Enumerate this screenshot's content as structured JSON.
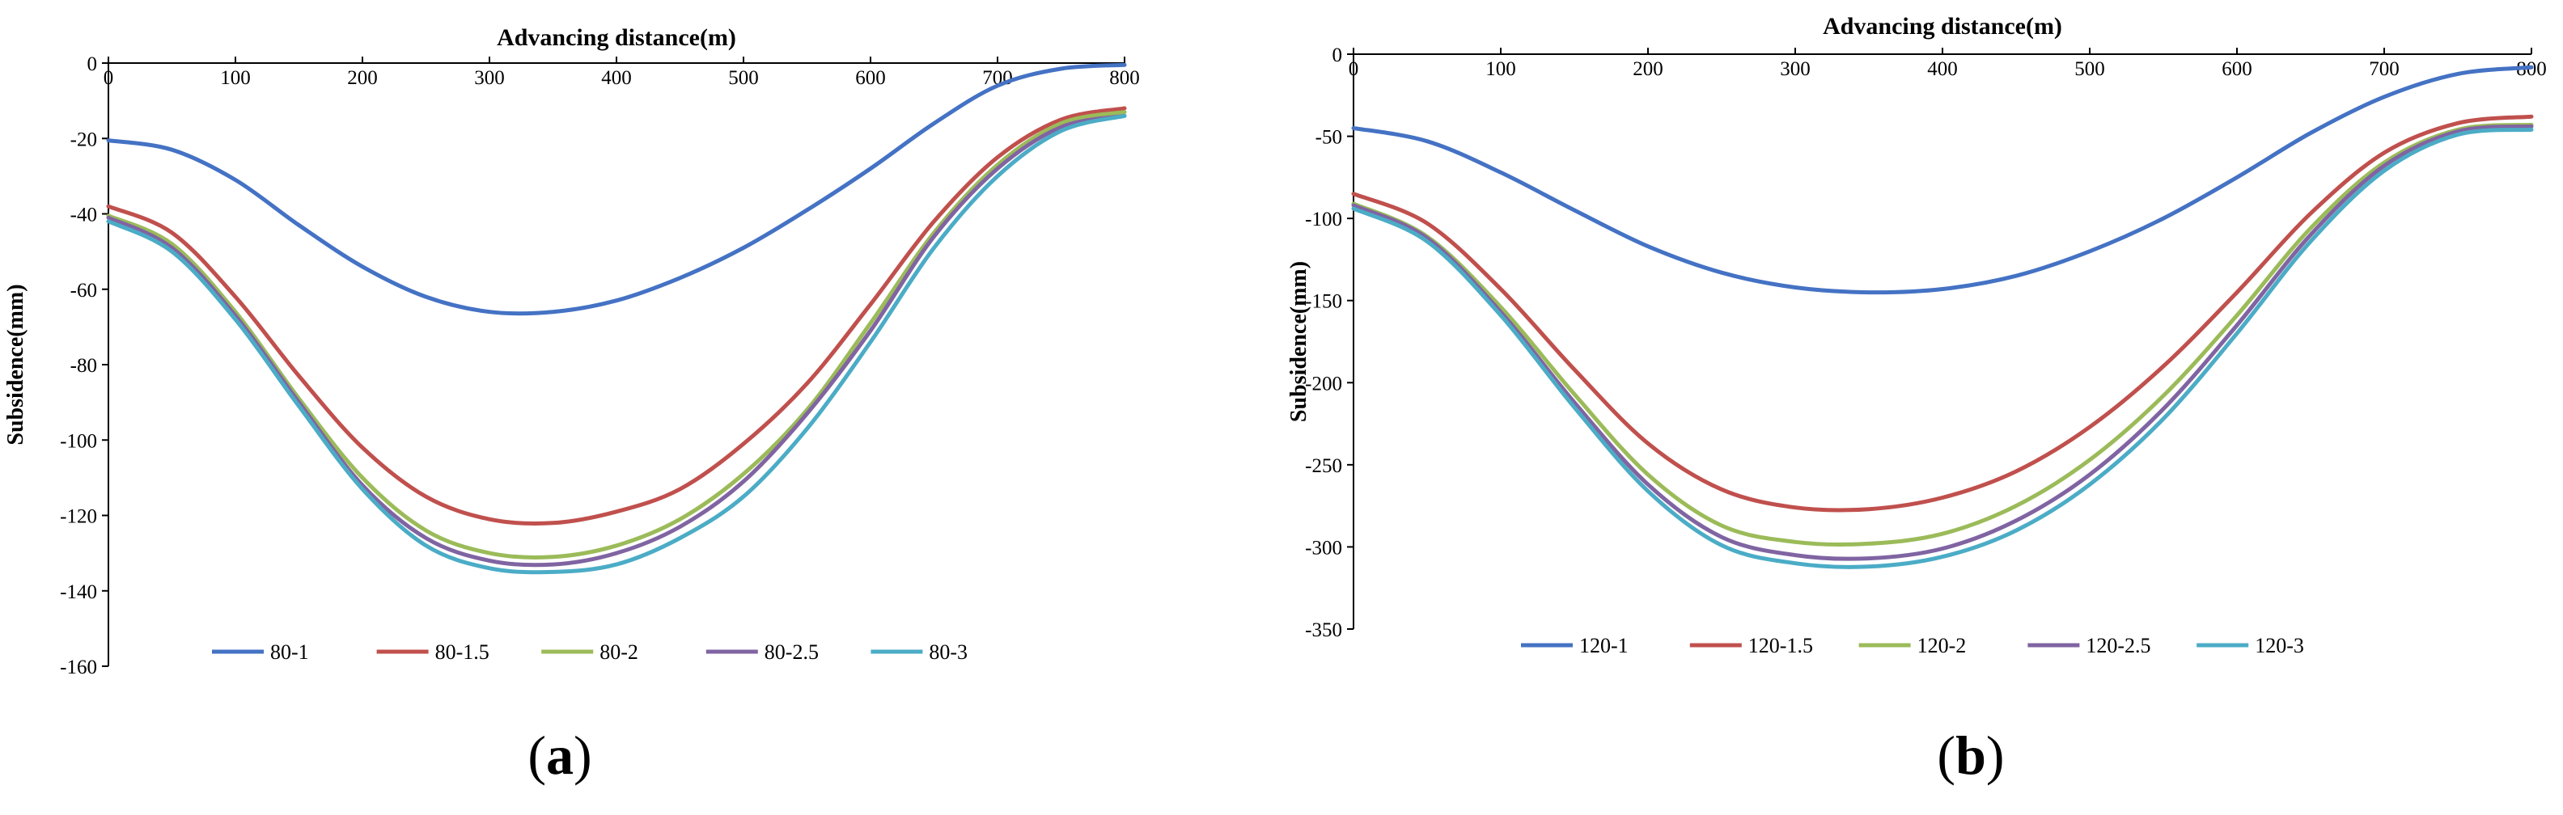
{
  "figure": {
    "captions": [
      {
        "open": "(",
        "letter": "a",
        "close": ")"
      },
      {
        "open": "(",
        "letter": "b",
        "close": ")"
      }
    ]
  },
  "chart_data": [
    {
      "type": "line",
      "title": "Advancing distance(m)",
      "xlabel": "Advancing distance(m)",
      "ylabel": "Subsidence(mm)",
      "xlim": [
        0,
        800
      ],
      "ylim": [
        -160,
        0
      ],
      "xticks": [
        0,
        100,
        200,
        300,
        400,
        500,
        600,
        700,
        800
      ],
      "yticks": [
        0,
        -20,
        -40,
        -60,
        -80,
        -100,
        -120,
        -140,
        -160
      ],
      "legend_position": "bottom",
      "series": [
        {
          "name": "80-1",
          "color": "#4472C4",
          "x": [
            0,
            50,
            100,
            150,
            200,
            250,
            300,
            350,
            400,
            450,
            500,
            550,
            600,
            650,
            700,
            750,
            800
          ],
          "y": [
            -20.5,
            -23,
            -31,
            -43,
            -54,
            -62,
            -66,
            -66,
            -63,
            -57,
            -49,
            -39,
            -28,
            -16,
            -6,
            -1.5,
            -0.5
          ]
        },
        {
          "name": "80-1.5",
          "color": "#C0504D",
          "x": [
            0,
            50,
            100,
            150,
            200,
            250,
            300,
            350,
            400,
            450,
            500,
            550,
            600,
            650,
            700,
            750,
            800
          ],
          "y": [
            -38,
            -45,
            -62,
            -83,
            -102,
            -115,
            -121,
            -122,
            -119,
            -113,
            -101,
            -85,
            -64,
            -42,
            -25,
            -15,
            -12
          ]
        },
        {
          "name": "80-2",
          "color": "#9BBB59",
          "x": [
            0,
            50,
            100,
            150,
            200,
            250,
            300,
            350,
            400,
            450,
            500,
            550,
            600,
            650,
            700,
            750,
            800
          ],
          "y": [
            -40.5,
            -48,
            -66,
            -89,
            -110,
            -124,
            -130,
            -131,
            -128,
            -121,
            -109,
            -92,
            -69,
            -45,
            -27,
            -16,
            -13
          ]
        },
        {
          "name": "80-2.5",
          "color": "#8064A2",
          "x": [
            0,
            50,
            100,
            150,
            200,
            250,
            300,
            350,
            400,
            450,
            500,
            550,
            600,
            650,
            700,
            750,
            800
          ],
          "y": [
            -41,
            -49,
            -67,
            -90,
            -112,
            -126,
            -132,
            -133,
            -130,
            -123,
            -111,
            -93,
            -71,
            -46,
            -28,
            -17,
            -14
          ]
        },
        {
          "name": "80-3",
          "color": "#4BACC6",
          "x": [
            0,
            50,
            100,
            150,
            200,
            250,
            300,
            350,
            400,
            450,
            500,
            550,
            600,
            650,
            700,
            750,
            800
          ],
          "y": [
            -42,
            -50,
            -68,
            -91,
            -113,
            -128,
            -134,
            -135,
            -133,
            -126,
            -115,
            -97,
            -74,
            -49,
            -30,
            -18,
            -14
          ]
        }
      ]
    },
    {
      "type": "line",
      "title": "Advancing distance(m)",
      "xlabel": "Advancing distance(m)",
      "ylabel": "Subsidence(mm)",
      "xlim": [
        0,
        800
      ],
      "ylim": [
        -350,
        0
      ],
      "xticks": [
        0,
        100,
        200,
        300,
        400,
        500,
        600,
        700,
        800
      ],
      "yticks": [
        0,
        -50,
        -100,
        -150,
        -200,
        -250,
        -300,
        -350
      ],
      "legend_position": "bottom",
      "series": [
        {
          "name": "120-1",
          "color": "#4472C4",
          "x": [
            0,
            50,
            100,
            150,
            200,
            250,
            300,
            350,
            400,
            450,
            500,
            550,
            600,
            650,
            700,
            750,
            800
          ],
          "y": [
            -45,
            -53,
            -72,
            -95,
            -117,
            -133,
            -142,
            -145,
            -143,
            -135,
            -120,
            -100,
            -75,
            -48,
            -26,
            -12,
            -8
          ]
        },
        {
          "name": "120-1.5",
          "color": "#C0504D",
          "x": [
            0,
            50,
            100,
            150,
            200,
            250,
            300,
            350,
            400,
            450,
            500,
            550,
            600,
            650,
            700,
            750,
            800
          ],
          "y": [
            -85,
            -103,
            -143,
            -192,
            -237,
            -265,
            -276,
            -277,
            -270,
            -254,
            -227,
            -190,
            -145,
            -97,
            -60,
            -42,
            -38
          ]
        },
        {
          "name": "120-2",
          "color": "#9BBB59",
          "x": [
            0,
            50,
            100,
            150,
            200,
            250,
            300,
            350,
            400,
            450,
            500,
            550,
            600,
            650,
            700,
            750,
            800
          ],
          "y": [
            -91,
            -111,
            -154,
            -207,
            -256,
            -287,
            -297,
            -298,
            -292,
            -275,
            -247,
            -208,
            -159,
            -106,
            -66,
            -46,
            -43
          ]
        },
        {
          "name": "120-2.5",
          "color": "#8064A2",
          "x": [
            0,
            50,
            100,
            150,
            200,
            250,
            300,
            350,
            400,
            450,
            500,
            550,
            600,
            650,
            700,
            750,
            800
          ],
          "y": [
            -92,
            -112,
            -157,
            -212,
            -262,
            -294,
            -305,
            -307,
            -301,
            -284,
            -256,
            -216,
            -165,
            -110,
            -68,
            -47,
            -44
          ]
        },
        {
          "name": "120-3",
          "color": "#4BACC6",
          "x": [
            0,
            50,
            100,
            150,
            200,
            250,
            300,
            350,
            400,
            450,
            500,
            550,
            600,
            650,
            700,
            750,
            800
          ],
          "y": [
            -94,
            -114,
            -159,
            -215,
            -266,
            -299,
            -310,
            -312,
            -306,
            -290,
            -262,
            -222,
            -170,
            -114,
            -71,
            -49,
            -46
          ]
        }
      ]
    }
  ]
}
